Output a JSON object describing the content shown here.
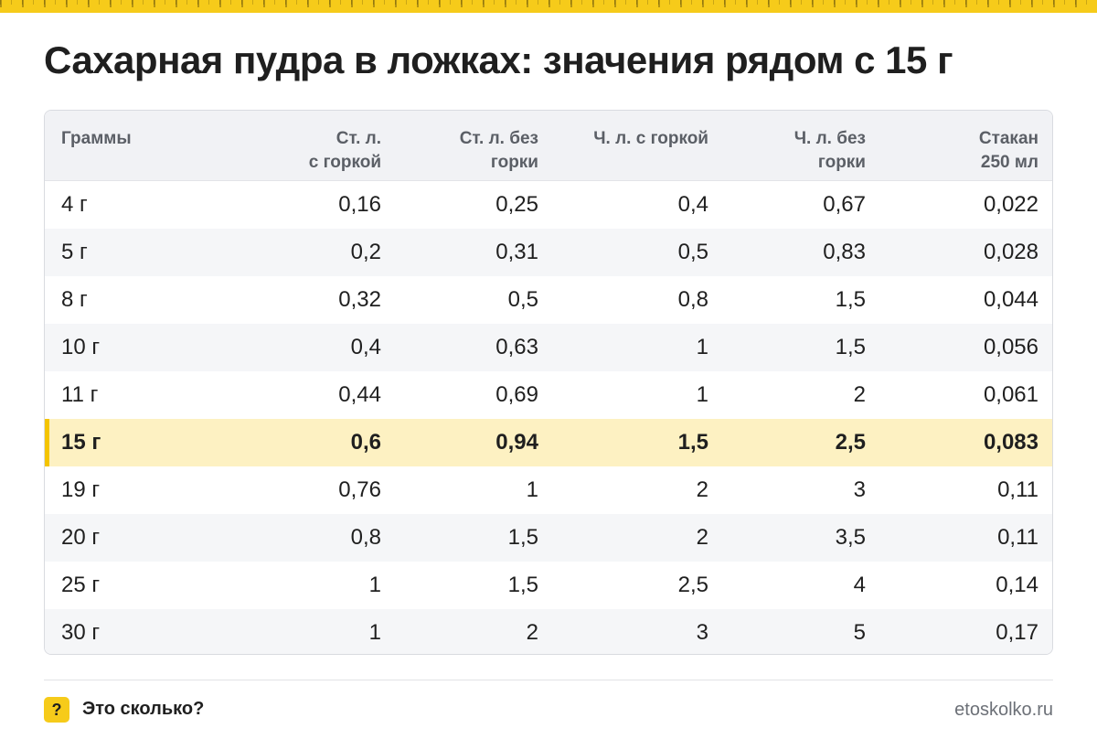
{
  "title": "Сахарная пудра в ложках: значения рядом с 15 г",
  "table": {
    "headers": [
      "Граммы",
      "Ст. л.\nс горкой",
      "Ст. л. без\nгорки",
      "Ч. л. с горкой",
      "Ч. л. без\nгорки",
      "Стакан\n250 мл"
    ],
    "rows": [
      [
        "4 г",
        "0,16",
        "0,25",
        "0,4",
        "0,67",
        "0,022"
      ],
      [
        "5 г",
        "0,2",
        "0,31",
        "0,5",
        "0,83",
        "0,028"
      ],
      [
        "8 г",
        "0,32",
        "0,5",
        "0,8",
        "1,5",
        "0,044"
      ],
      [
        "10 г",
        "0,4",
        "0,63",
        "1",
        "1,5",
        "0,056"
      ],
      [
        "11 г",
        "0,44",
        "0,69",
        "1",
        "2",
        "0,061"
      ],
      [
        "15 г",
        "0,6",
        "0,94",
        "1,5",
        "2,5",
        "0,083"
      ],
      [
        "19 г",
        "0,76",
        "1",
        "2",
        "3",
        "0,11"
      ],
      [
        "20 г",
        "0,8",
        "1,5",
        "2",
        "3,5",
        "0,11"
      ],
      [
        "25 г",
        "1",
        "1,5",
        "2,5",
        "4",
        "0,14"
      ],
      [
        "30 г",
        "1",
        "2",
        "3",
        "5",
        "0,17"
      ]
    ],
    "highlighted_row": "15 г"
  },
  "footer": {
    "badge_symbol": "?",
    "brand": "Это сколько?",
    "site": "etoskolko.ru"
  },
  "colors": {
    "accent": "#f6cb1a",
    "highlight_row": "#fdf1c2"
  }
}
